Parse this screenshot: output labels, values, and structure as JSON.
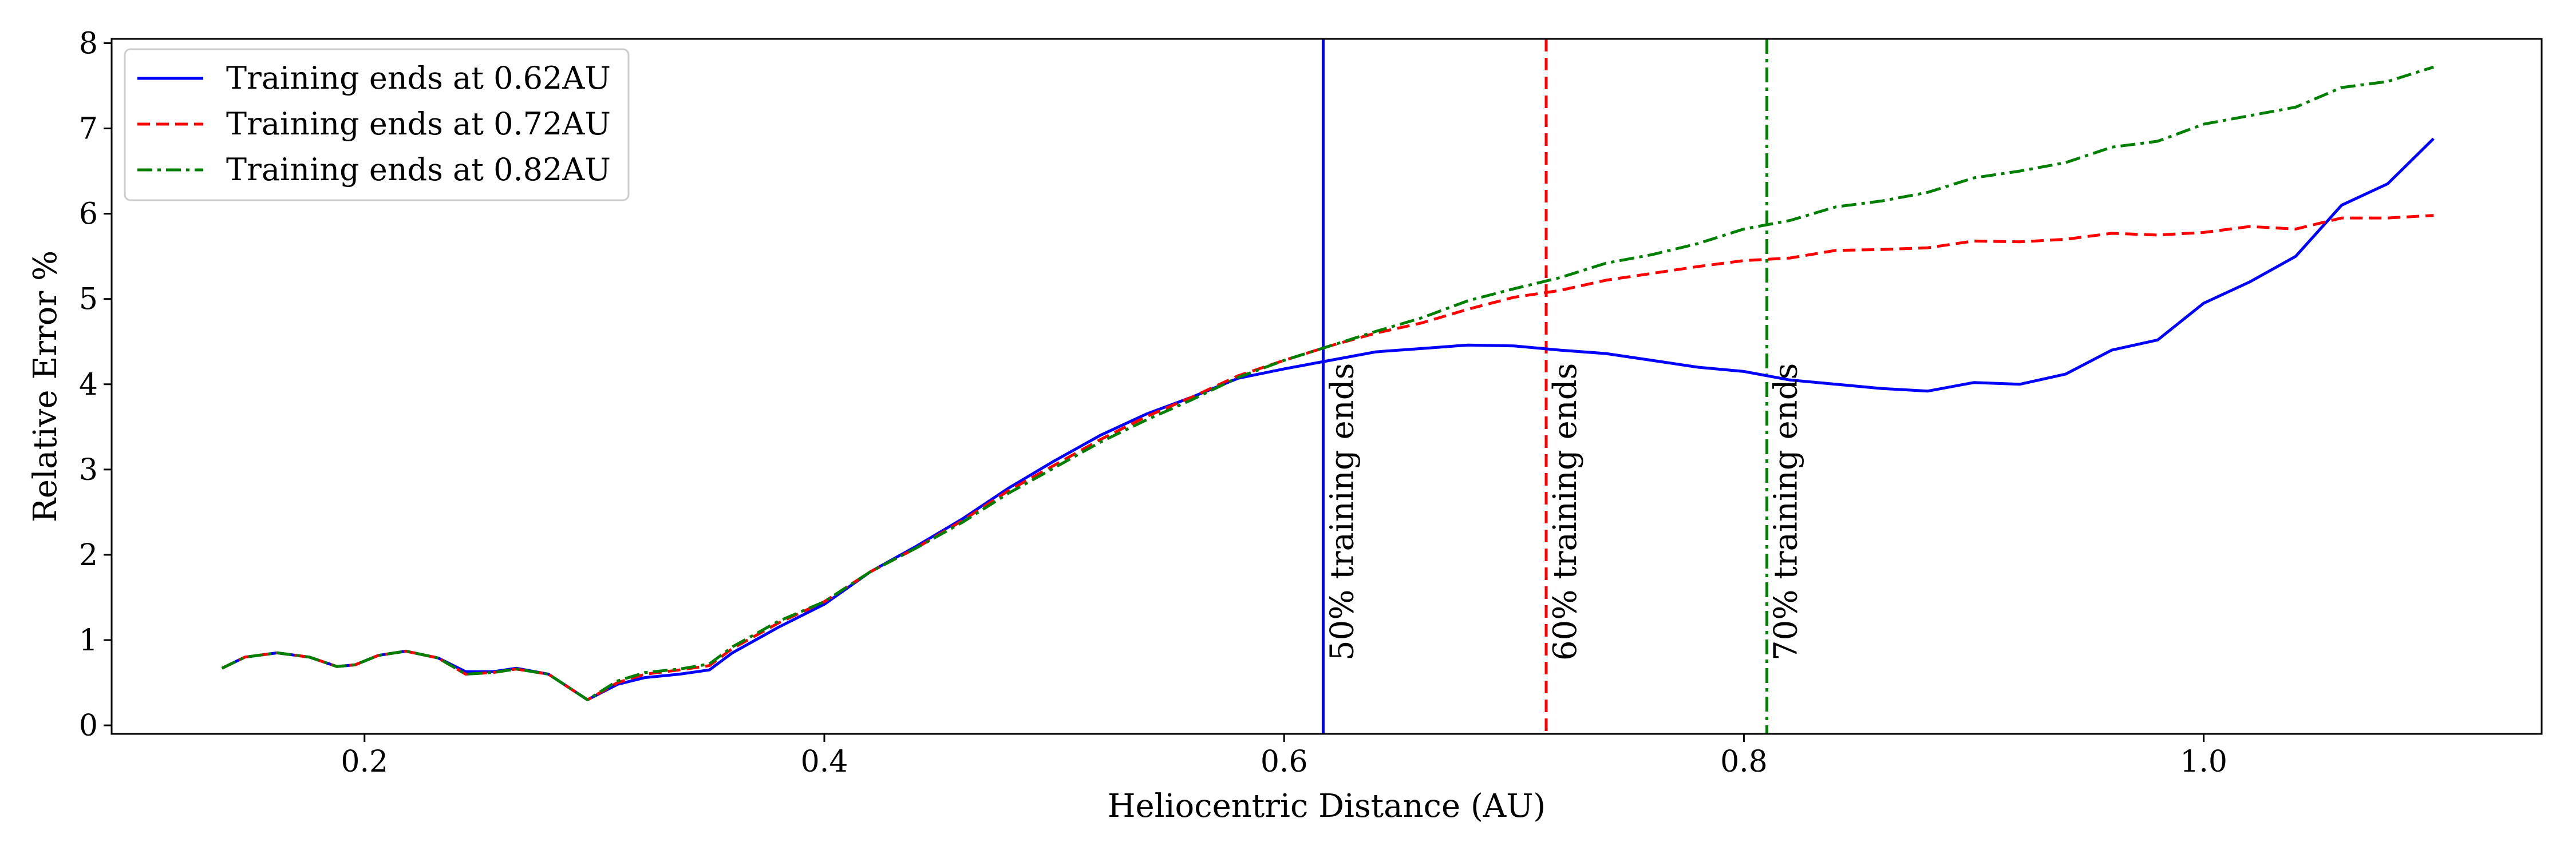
{
  "chart_data": {
    "type": "line",
    "title": "",
    "xlabel": "Heliocentric Distance (AU)",
    "ylabel": "Relative Error %",
    "xlim": [
      0.09,
      1.147
    ],
    "ylim": [
      -0.1,
      8.05
    ],
    "xticks": [
      0.2,
      0.4,
      0.6,
      0.8,
      1.0
    ],
    "xtick_labels": [
      "0.2",
      "0.4",
      "0.6",
      "0.8",
      "1.0"
    ],
    "yticks": [
      0,
      1,
      2,
      3,
      4,
      5,
      6,
      7,
      8
    ],
    "ytick_labels": [
      "0",
      "1",
      "2",
      "3",
      "4",
      "5",
      "6",
      "7",
      "8"
    ],
    "grid": false,
    "legend_position": "top-left",
    "series": [
      {
        "name": "Training ends at 0.62AU",
        "color": "#0000ff",
        "style": "solid",
        "points": [
          [
            0.138,
            0.67
          ],
          [
            0.148,
            0.8
          ],
          [
            0.162,
            0.85
          ],
          [
            0.176,
            0.8
          ],
          [
            0.188,
            0.69
          ],
          [
            0.196,
            0.71
          ],
          [
            0.206,
            0.82
          ],
          [
            0.218,
            0.87
          ],
          [
            0.232,
            0.79
          ],
          [
            0.244,
            0.63
          ],
          [
            0.256,
            0.63
          ],
          [
            0.266,
            0.67
          ],
          [
            0.28,
            0.6
          ],
          [
            0.297,
            0.3
          ],
          [
            0.31,
            0.48
          ],
          [
            0.322,
            0.56
          ],
          [
            0.337,
            0.6
          ],
          [
            0.35,
            0.65
          ],
          [
            0.36,
            0.85
          ],
          [
            0.38,
            1.15
          ],
          [
            0.4,
            1.42
          ],
          [
            0.42,
            1.8
          ],
          [
            0.44,
            2.1
          ],
          [
            0.46,
            2.42
          ],
          [
            0.48,
            2.78
          ],
          [
            0.5,
            3.1
          ],
          [
            0.52,
            3.4
          ],
          [
            0.54,
            3.65
          ],
          [
            0.56,
            3.85
          ],
          [
            0.58,
            4.07
          ],
          [
            0.6,
            4.18
          ],
          [
            0.62,
            4.28
          ],
          [
            0.64,
            4.38
          ],
          [
            0.66,
            4.42
          ],
          [
            0.68,
            4.46
          ],
          [
            0.7,
            4.45
          ],
          [
            0.72,
            4.4
          ],
          [
            0.74,
            4.36
          ],
          [
            0.76,
            4.28
          ],
          [
            0.78,
            4.2
          ],
          [
            0.8,
            4.15
          ],
          [
            0.82,
            4.05
          ],
          [
            0.84,
            4.0
          ],
          [
            0.86,
            3.95
          ],
          [
            0.88,
            3.92
          ],
          [
            0.9,
            4.02
          ],
          [
            0.92,
            4.0
          ],
          [
            0.94,
            4.12
          ],
          [
            0.96,
            4.4
          ],
          [
            0.98,
            4.52
          ],
          [
            1.0,
            4.95
          ],
          [
            1.02,
            5.2
          ],
          [
            1.04,
            5.5
          ],
          [
            1.06,
            6.1
          ],
          [
            1.08,
            6.35
          ],
          [
            1.1,
            6.88
          ]
        ]
      },
      {
        "name": "Training ends at 0.72AU",
        "color": "#ff0000",
        "style": "dashed",
        "points": [
          [
            0.138,
            0.67
          ],
          [
            0.148,
            0.8
          ],
          [
            0.162,
            0.85
          ],
          [
            0.176,
            0.8
          ],
          [
            0.188,
            0.69
          ],
          [
            0.196,
            0.71
          ],
          [
            0.206,
            0.82
          ],
          [
            0.218,
            0.87
          ],
          [
            0.232,
            0.79
          ],
          [
            0.244,
            0.6
          ],
          [
            0.256,
            0.62
          ],
          [
            0.266,
            0.66
          ],
          [
            0.28,
            0.6
          ],
          [
            0.297,
            0.3
          ],
          [
            0.31,
            0.5
          ],
          [
            0.322,
            0.6
          ],
          [
            0.337,
            0.65
          ],
          [
            0.35,
            0.7
          ],
          [
            0.36,
            0.9
          ],
          [
            0.38,
            1.2
          ],
          [
            0.4,
            1.45
          ],
          [
            0.42,
            1.8
          ],
          [
            0.44,
            2.08
          ],
          [
            0.46,
            2.4
          ],
          [
            0.48,
            2.75
          ],
          [
            0.5,
            3.05
          ],
          [
            0.52,
            3.35
          ],
          [
            0.54,
            3.62
          ],
          [
            0.56,
            3.85
          ],
          [
            0.58,
            4.1
          ],
          [
            0.6,
            4.28
          ],
          [
            0.62,
            4.45
          ],
          [
            0.64,
            4.6
          ],
          [
            0.66,
            4.72
          ],
          [
            0.68,
            4.88
          ],
          [
            0.7,
            5.02
          ],
          [
            0.72,
            5.1
          ],
          [
            0.74,
            5.22
          ],
          [
            0.76,
            5.3
          ],
          [
            0.78,
            5.38
          ],
          [
            0.8,
            5.45
          ],
          [
            0.82,
            5.48
          ],
          [
            0.84,
            5.57
          ],
          [
            0.86,
            5.58
          ],
          [
            0.88,
            5.6
          ],
          [
            0.9,
            5.68
          ],
          [
            0.92,
            5.67
          ],
          [
            0.94,
            5.7
          ],
          [
            0.96,
            5.77
          ],
          [
            0.98,
            5.75
          ],
          [
            1.0,
            5.78
          ],
          [
            1.02,
            5.85
          ],
          [
            1.04,
            5.82
          ],
          [
            1.06,
            5.95
          ],
          [
            1.08,
            5.95
          ],
          [
            1.1,
            5.98
          ]
        ]
      },
      {
        "name": "Training ends at 0.82AU",
        "color": "#008000",
        "style": "dashdot",
        "points": [
          [
            0.138,
            0.67
          ],
          [
            0.148,
            0.8
          ],
          [
            0.162,
            0.85
          ],
          [
            0.176,
            0.8
          ],
          [
            0.188,
            0.69
          ],
          [
            0.196,
            0.71
          ],
          [
            0.206,
            0.82
          ],
          [
            0.218,
            0.87
          ],
          [
            0.232,
            0.79
          ],
          [
            0.244,
            0.6
          ],
          [
            0.256,
            0.62
          ],
          [
            0.266,
            0.66
          ],
          [
            0.28,
            0.6
          ],
          [
            0.297,
            0.3
          ],
          [
            0.31,
            0.52
          ],
          [
            0.322,
            0.62
          ],
          [
            0.337,
            0.66
          ],
          [
            0.35,
            0.72
          ],
          [
            0.36,
            0.92
          ],
          [
            0.38,
            1.22
          ],
          [
            0.4,
            1.45
          ],
          [
            0.42,
            1.8
          ],
          [
            0.44,
            2.08
          ],
          [
            0.46,
            2.38
          ],
          [
            0.48,
            2.72
          ],
          [
            0.5,
            3.02
          ],
          [
            0.52,
            3.32
          ],
          [
            0.54,
            3.58
          ],
          [
            0.56,
            3.82
          ],
          [
            0.58,
            4.08
          ],
          [
            0.6,
            4.28
          ],
          [
            0.62,
            4.45
          ],
          [
            0.64,
            4.62
          ],
          [
            0.66,
            4.78
          ],
          [
            0.68,
            4.98
          ],
          [
            0.7,
            5.12
          ],
          [
            0.72,
            5.25
          ],
          [
            0.74,
            5.42
          ],
          [
            0.76,
            5.52
          ],
          [
            0.78,
            5.65
          ],
          [
            0.8,
            5.82
          ],
          [
            0.82,
            5.92
          ],
          [
            0.84,
            6.08
          ],
          [
            0.86,
            6.15
          ],
          [
            0.88,
            6.25
          ],
          [
            0.9,
            6.42
          ],
          [
            0.92,
            6.5
          ],
          [
            0.94,
            6.6
          ],
          [
            0.96,
            6.78
          ],
          [
            0.98,
            6.85
          ],
          [
            1.0,
            7.05
          ],
          [
            1.02,
            7.15
          ],
          [
            1.04,
            7.25
          ],
          [
            1.06,
            7.48
          ],
          [
            1.08,
            7.55
          ],
          [
            1.1,
            7.72
          ]
        ]
      }
    ],
    "vlines": [
      {
        "x": 0.617,
        "color": "#0000ff",
        "style": "solid",
        "label": "50% training ends"
      },
      {
        "x": 0.714,
        "color": "#ff0000",
        "style": "dashed",
        "label": "60% training ends"
      },
      {
        "x": 0.81,
        "color": "#008000",
        "style": "dashdot",
        "label": "70% training ends"
      }
    ]
  }
}
